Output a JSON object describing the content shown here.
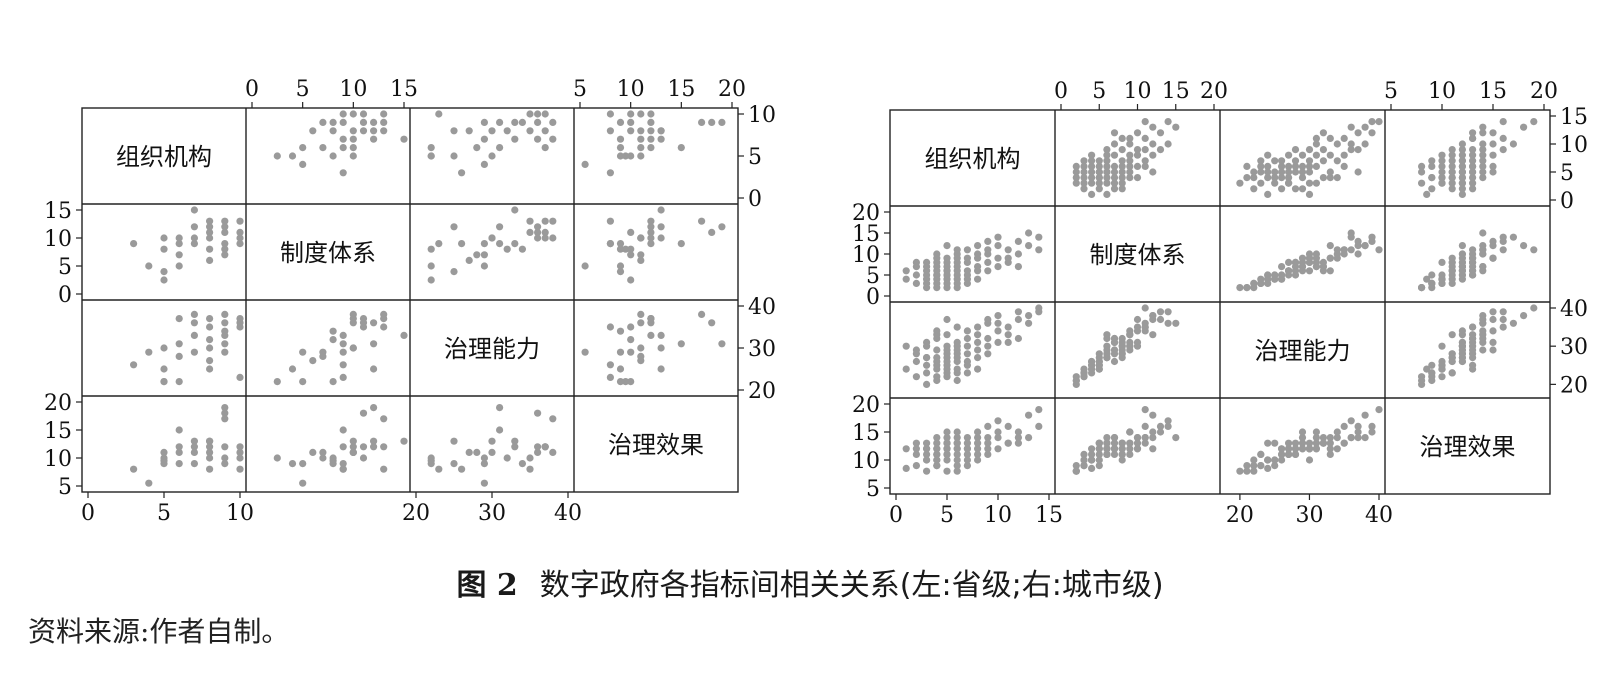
{
  "caption": {
    "figure_number": "图 2",
    "text": "数字政府各指标间相关关系(左:省级;右:城市级)"
  },
  "source_note": "资料来源:作者自制。",
  "colors": {
    "points": "#9a9a9a",
    "frame": "#222222"
  },
  "chart_data": [
    {
      "type": "scatter",
      "title": "",
      "variables": [
        "组织机构",
        "制度体系",
        "治理能力",
        "治理效果"
      ],
      "ranges": [
        [
          0,
          10
        ],
        [
          0,
          15
        ],
        [
          20,
          40
        ],
        [
          5,
          20
        ]
      ],
      "ticks": [
        [
          0,
          5,
          10
        ],
        [
          0,
          5,
          10,
          15
        ],
        [
          20,
          30,
          40
        ],
        [
          5,
          10,
          15,
          20
        ]
      ],
      "observations": [
        [
          3,
          9,
          26,
          8
        ],
        [
          4,
          5,
          29,
          5.5
        ],
        [
          5,
          4,
          25,
          9
        ],
        [
          5,
          8,
          22,
          9.5
        ],
        [
          5,
          10,
          30,
          11
        ],
        [
          5,
          2.5,
          22,
          10
        ],
        [
          6,
          10,
          37,
          12
        ],
        [
          6,
          7,
          28,
          11
        ],
        [
          6,
          5,
          22,
          9
        ],
        [
          6,
          9,
          31,
          15
        ],
        [
          7,
          15,
          33,
          13
        ],
        [
          7,
          10,
          38,
          11
        ],
        [
          7,
          12,
          36,
          12
        ],
        [
          7,
          9,
          29,
          9
        ],
        [
          8,
          11,
          37,
          12
        ],
        [
          8,
          8,
          32,
          10
        ],
        [
          8,
          13,
          35,
          8
        ],
        [
          8,
          6,
          27,
          11
        ],
        [
          8,
          10,
          30,
          13
        ],
        [
          9,
          13,
          38,
          17
        ],
        [
          9,
          9,
          33,
          12
        ],
        [
          9,
          11,
          36,
          18
        ],
        [
          9,
          7,
          29,
          10
        ],
        [
          9,
          12,
          31,
          19
        ],
        [
          10,
          11,
          35,
          10
        ],
        [
          10,
          9,
          23,
          8
        ],
        [
          10,
          13,
          37,
          12
        ],
        [
          10,
          10,
          36,
          11
        ],
        [
          9,
          8,
          34,
          9
        ],
        [
          8,
          12,
          25,
          13
        ]
      ]
    },
    {
      "type": "scatter",
      "title": "",
      "variables": [
        "组织机构",
        "制度体系",
        "治理能力",
        "治理效果"
      ],
      "ranges": [
        [
          0,
          15
        ],
        [
          0,
          20
        ],
        [
          18,
          40
        ],
        [
          5,
          20
        ]
      ],
      "ticks": [
        [
          0,
          5,
          10,
          15
        ],
        [
          0,
          5,
          10,
          15,
          20
        ],
        [
          20,
          30,
          40
        ],
        [
          5,
          10,
          15,
          20
        ]
      ],
      "observations": [
        [
          1,
          4,
          24,
          8.5
        ],
        [
          1,
          6,
          30,
          12
        ],
        [
          2,
          3,
          22,
          9
        ],
        [
          2,
          5,
          26,
          11
        ],
        [
          2,
          8,
          28,
          13
        ],
        [
          3,
          2,
          20,
          8
        ],
        [
          3,
          4,
          25,
          10
        ],
        [
          3,
          6,
          27,
          12
        ],
        [
          3,
          7,
          31,
          12
        ],
        [
          3,
          3,
          23,
          11
        ],
        [
          4,
          5,
          24,
          10
        ],
        [
          4,
          2,
          21,
          9
        ],
        [
          4,
          6,
          29,
          13
        ],
        [
          4,
          8,
          27,
          11
        ],
        [
          4,
          4,
          26,
          12
        ],
        [
          4,
          3,
          22,
          10
        ],
        [
          4,
          7,
          32,
          14
        ],
        [
          4,
          5,
          25,
          9
        ],
        [
          5,
          6,
          27,
          12
        ],
        [
          5,
          4,
          23,
          11
        ],
        [
          5,
          9,
          30,
          13
        ],
        [
          5,
          5,
          28,
          12
        ],
        [
          5,
          3,
          24,
          10
        ],
        [
          5,
          7,
          26,
          11
        ],
        [
          5,
          6,
          33,
          14
        ],
        [
          5,
          2,
          22,
          8
        ],
        [
          5,
          8,
          29,
          12
        ],
        [
          5,
          5,
          25,
          13
        ],
        [
          6,
          7,
          28,
          12
        ],
        [
          6,
          4,
          26,
          10
        ],
        [
          6,
          10,
          31,
          14
        ],
        [
          6,
          6,
          27,
          11
        ],
        [
          6,
          5,
          24,
          13
        ],
        [
          6,
          8,
          30,
          12
        ],
        [
          6,
          3,
          23,
          9
        ],
        [
          6,
          9,
          29,
          15
        ],
        [
          7,
          6,
          32,
          13
        ],
        [
          7,
          8,
          28,
          11
        ],
        [
          7,
          11,
          34,
          14
        ],
        [
          7,
          5,
          26,
          12
        ],
        [
          7,
          9,
          30,
          12
        ],
        [
          7,
          4,
          25,
          10
        ],
        [
          8,
          10,
          35,
          13
        ],
        [
          8,
          7,
          29,
          14
        ],
        [
          8,
          12,
          33,
          12
        ],
        [
          8,
          9,
          31,
          15
        ],
        [
          8,
          6,
          27,
          11
        ],
        [
          9,
          11,
          36,
          14
        ],
        [
          9,
          8,
          32,
          13
        ],
        [
          9,
          13,
          37,
          16
        ],
        [
          9,
          10,
          30,
          12
        ],
        [
          10,
          9,
          34,
          15
        ],
        [
          10,
          12,
          38,
          14
        ],
        [
          10,
          7,
          31,
          12
        ],
        [
          10,
          14,
          36,
          17
        ],
        [
          11,
          11,
          35,
          16
        ],
        [
          11,
          9,
          33,
          13
        ],
        [
          12,
          13,
          39,
          15
        ],
        [
          12,
          10,
          37,
          14
        ],
        [
          13,
          12,
          38,
          18
        ],
        [
          13,
          15,
          36,
          14
        ],
        [
          14,
          11,
          40,
          19
        ],
        [
          14,
          14,
          39,
          16
        ],
        [
          3,
          5,
          27,
          13
        ],
        [
          4,
          9,
          33,
          11
        ],
        [
          6,
          11,
          35,
          13
        ],
        [
          8,
          4,
          24,
          10
        ],
        [
          2,
          7,
          29,
          12
        ],
        [
          7,
          3,
          23,
          9
        ],
        [
          9,
          6,
          28,
          11
        ],
        [
          11,
          8,
          31,
          13
        ],
        [
          5,
          12,
          37,
          15
        ],
        [
          6,
          2,
          21,
          8
        ],
        [
          4,
          10,
          34,
          12
        ],
        [
          3,
          8,
          30,
          10
        ],
        [
          12,
          7,
          32,
          13
        ]
      ]
    }
  ]
}
